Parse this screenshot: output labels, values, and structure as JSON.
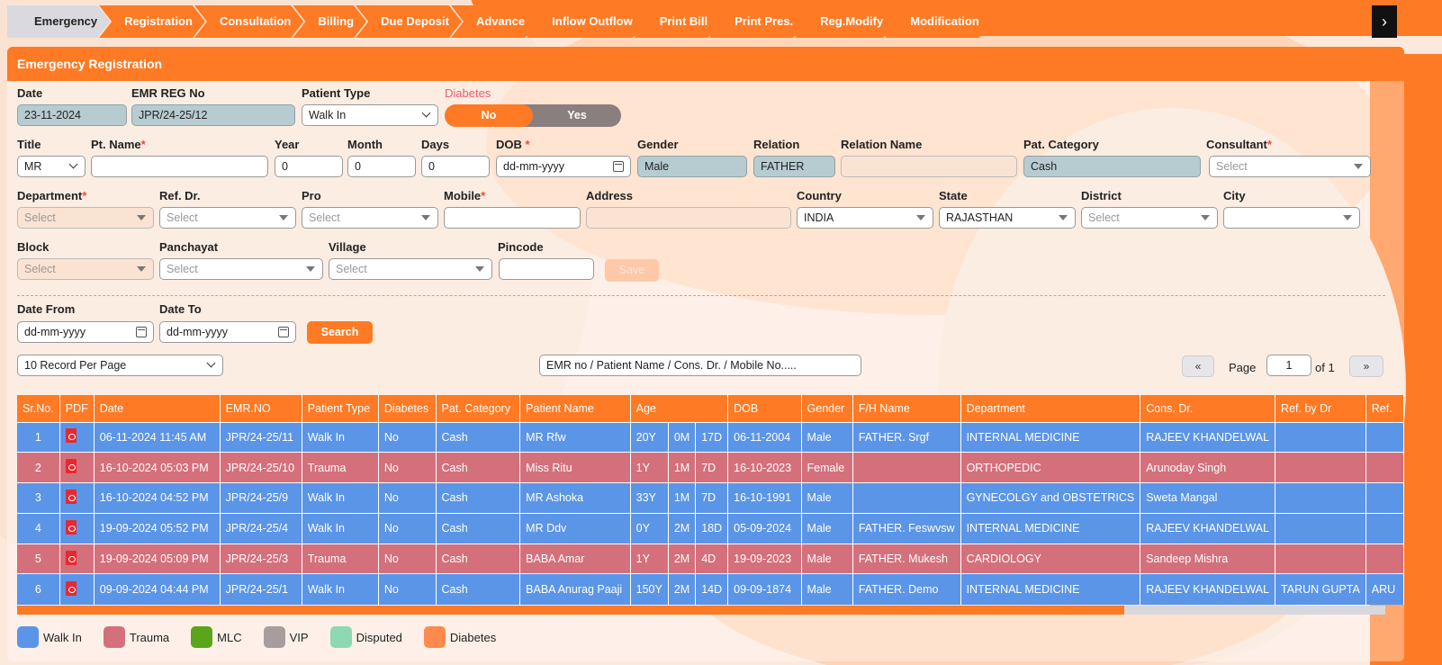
{
  "tabs": [
    "Emergency",
    "Registration",
    "Consultation",
    "Billing",
    "Due Deposit",
    "Advance",
    "Inflow Outflow",
    "Print Bill",
    "Print Pres.",
    "Reg.Modify",
    "Modification"
  ],
  "panel_title": "Emergency Registration",
  "labels": {
    "date": "Date",
    "emr_reg_no": "EMR REG No",
    "patient_type": "Patient Type",
    "diabetes": "Diabetes",
    "title": "Title",
    "pt_name": "Pt. Name",
    "year": "Year",
    "month": "Month",
    "days": "Days",
    "dob": "DOB",
    "gender": "Gender",
    "relation": "Relation",
    "relation_name": "Relation Name",
    "pat_category": "Pat. Category",
    "consultant": "Consultant",
    "department": "Department",
    "ref_dr": "Ref. Dr.",
    "pro": "Pro",
    "mobile": "Mobile",
    "address": "Address",
    "country": "Country",
    "state": "State",
    "district": "District",
    "city": "City",
    "block": "Block",
    "panchayat": "Panchayat",
    "village": "Village",
    "pincode": "Pincode",
    "date_from": "Date From",
    "date_to": "Date To",
    "page": "Page",
    "of": "of 1"
  },
  "values": {
    "date": "23-11-2024",
    "emr_reg_no": "JPR/24-25/12",
    "patient_type": "Walk In",
    "title": "MR",
    "year": "0",
    "month": "0",
    "days": "0",
    "dob": "dd-mm-yyyy",
    "gender": "Male",
    "relation": "FATHER",
    "pat_category": "Cash",
    "country": "INDIA",
    "state": "RAJASTHAN",
    "date_from": "dd-mm-yyyy",
    "date_to": "dd-mm-yyyy",
    "records_per_page": "10 Record Per Page",
    "search_placeholder": "EMR no / Patient Name / Cons. Dr. / Mobile No.....",
    "page_no": "1"
  },
  "select_placeholder": "Select",
  "toggle": {
    "no": "No",
    "yes": "Yes"
  },
  "buttons": {
    "save": "Save",
    "search": "Search",
    "prev": "«",
    "next": "»"
  },
  "table": {
    "headers": [
      "Sr.No.",
      "PDF",
      "Date",
      "EMR.NO",
      "Patient Type",
      "Diabetes",
      "Pat. Category",
      "Patient Name",
      "Age",
      "DOB",
      "Gender",
      "F/H Name",
      "Department",
      "Cons. Dr.",
      "Ref. by Dr",
      "Ref."
    ],
    "rows": [
      {
        "sr": "1",
        "date": "06-11-2024 11:45 AM",
        "emr": "JPR/24-25/11",
        "type": "Walk In",
        "diabetes": "No",
        "cat": "Cash",
        "name": "MR Rfw",
        "ay": "20Y",
        "am": "0M",
        "ad": "17D",
        "dob": "06-11-2004",
        "gender": "Male",
        "fh": "FATHER. Srgf",
        "dept": "INTERNAL MEDICINE",
        "cons": "RAJEEV KHANDELWAL",
        "refdr": "",
        "ref": ""
      },
      {
        "sr": "2",
        "date": "16-10-2024 05:03 PM",
        "emr": "JPR/24-25/10",
        "type": "Trauma",
        "diabetes": "No",
        "cat": "Cash",
        "name": "Miss Ritu",
        "ay": "1Y",
        "am": "1M",
        "ad": "7D",
        "dob": "16-10-2023",
        "gender": "Female",
        "fh": "",
        "dept": "ORTHOPEDIC",
        "cons": "Arunoday Singh",
        "refdr": "",
        "ref": ""
      },
      {
        "sr": "3",
        "date": "16-10-2024 04:52 PM",
        "emr": "JPR/24-25/9",
        "type": "Walk In",
        "diabetes": "No",
        "cat": "Cash",
        "name": "MR Ashoka",
        "ay": "33Y",
        "am": "1M",
        "ad": "7D",
        "dob": "16-10-1991",
        "gender": "Male",
        "fh": "",
        "dept": "GYNECOLGY and OBSTETRICS",
        "cons": "Sweta Mangal",
        "refdr": "",
        "ref": ""
      },
      {
        "sr": "4",
        "date": "19-09-2024 05:52 PM",
        "emr": "JPR/24-25/4",
        "type": "Walk In",
        "diabetes": "No",
        "cat": "Cash",
        "name": "MR Ddv",
        "ay": "0Y",
        "am": "2M",
        "ad": "18D",
        "dob": "05-09-2024",
        "gender": "Male",
        "fh": "FATHER. Feswvsw",
        "dept": "INTERNAL MEDICINE",
        "cons": "RAJEEV KHANDELWAL",
        "refdr": "",
        "ref": ""
      },
      {
        "sr": "5",
        "date": "19-09-2024 05:09 PM",
        "emr": "JPR/24-25/3",
        "type": "Trauma",
        "diabetes": "No",
        "cat": "Cash",
        "name": "BABA Amar",
        "ay": "1Y",
        "am": "2M",
        "ad": "4D",
        "dob": "19-09-2023",
        "gender": "Male",
        "fh": "FATHER. Mukesh",
        "dept": "CARDIOLOGY",
        "cons": "Sandeep Mishra",
        "refdr": "",
        "ref": ""
      },
      {
        "sr": "6",
        "date": "09-09-2024 04:44 PM",
        "emr": "JPR/24-25/1",
        "type": "Walk In",
        "diabetes": "No",
        "cat": "Cash",
        "name": "BABA Anurag Paaji",
        "ay": "150Y",
        "am": "2M",
        "ad": "14D",
        "dob": "09-09-1874",
        "gender": "Male",
        "fh": "FATHER. Demo",
        "dept": "INTERNAL MEDICINE",
        "cons": "RAJEEV KHANDELWAL",
        "refdr": "TARUN GUPTA",
        "ref": "ARU"
      }
    ]
  },
  "legend": [
    {
      "label": "Walk In",
      "color": "#5b95e8"
    },
    {
      "label": "Trauma",
      "color": "#d4707c"
    },
    {
      "label": "MLC",
      "color": "#5aa51b"
    },
    {
      "label": "VIP",
      "color": "#a89d9d"
    },
    {
      "label": "Disputed",
      "color": "#8fd8b4"
    },
    {
      "label": "Diabetes",
      "color": "#ff8a4d"
    }
  ],
  "colors": {
    "accent": "#ff7a24",
    "walkin": "#5b95e8",
    "trauma": "#d4707c"
  }
}
